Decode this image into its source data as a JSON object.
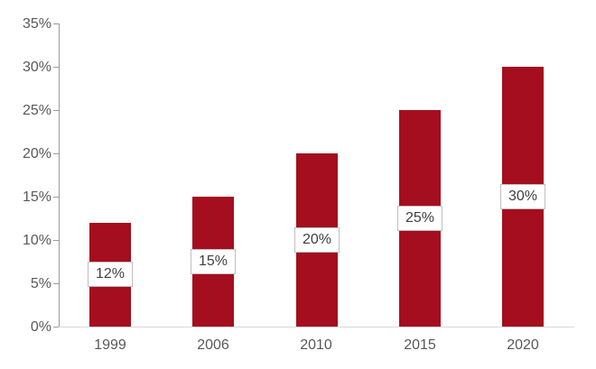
{
  "chart_data": {
    "type": "bar",
    "title": "",
    "xlabel": "",
    "ylabel": "",
    "categories": [
      "1999",
      "2006",
      "2010",
      "2015",
      "2020"
    ],
    "values": [
      12,
      15,
      20,
      25,
      30
    ],
    "data_labels": [
      "12%",
      "15%",
      "20%",
      "25%",
      "30%"
    ],
    "ylim": [
      0,
      35
    ],
    "ytick_step": 5,
    "ytick_labels": [
      "0%",
      "5%",
      "10%",
      "15%",
      "20%",
      "25%",
      "30%",
      "35%"
    ],
    "grid": false,
    "legend": false,
    "data_label_position": "inside-center",
    "colors": {
      "bar": "#A40E1E",
      "axis_line": "#9B9B9B",
      "baseline": "#D9D9D9",
      "tick_label": "#595959",
      "x_label": "#595959",
      "data_label_text": "#404040",
      "data_label_fill": "#FFFFFF",
      "data_label_border": "#BFBFBF",
      "background": "#FFFFFF"
    }
  }
}
